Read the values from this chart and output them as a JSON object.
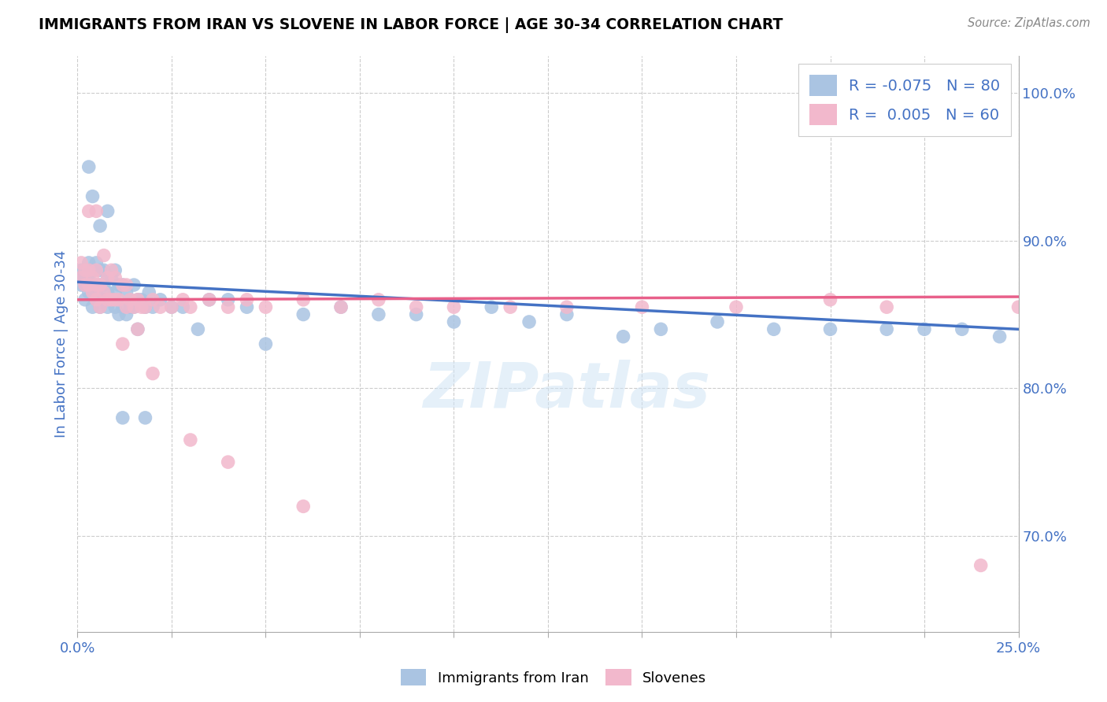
{
  "title": "IMMIGRANTS FROM IRAN VS SLOVENE IN LABOR FORCE | AGE 30-34 CORRELATION CHART",
  "source": "Source: ZipAtlas.com",
  "ylabel": "In Labor Force | Age 30-34",
  "ylabel_right_ticks": [
    "70.0%",
    "80.0%",
    "90.0%",
    "100.0%"
  ],
  "ylabel_right_vals": [
    0.7,
    0.8,
    0.9,
    1.0
  ],
  "xmin": 0.0,
  "xmax": 0.25,
  "ymin": 0.635,
  "ymax": 1.025,
  "iran_color": "#aac4e2",
  "slovene_color": "#f2b8cc",
  "iran_line_color": "#4472c4",
  "slovene_line_color": "#e8608a",
  "legend_iran_R": "-0.075",
  "legend_iran_N": "80",
  "legend_slovene_R": "0.005",
  "legend_slovene_N": "60",
  "watermark": "ZIPatlas",
  "iran_x": [
    0.001,
    0.001,
    0.001,
    0.002,
    0.002,
    0.002,
    0.002,
    0.003,
    0.003,
    0.003,
    0.003,
    0.003,
    0.004,
    0.004,
    0.004,
    0.004,
    0.005,
    0.005,
    0.005,
    0.005,
    0.006,
    0.006,
    0.006,
    0.007,
    0.007,
    0.007,
    0.008,
    0.008,
    0.008,
    0.009,
    0.009,
    0.01,
    0.01,
    0.01,
    0.011,
    0.011,
    0.012,
    0.012,
    0.013,
    0.013,
    0.014,
    0.015,
    0.015,
    0.016,
    0.016,
    0.017,
    0.018,
    0.019,
    0.02,
    0.022,
    0.025,
    0.028,
    0.032,
    0.035,
    0.04,
    0.045,
    0.05,
    0.06,
    0.07,
    0.08,
    0.09,
    0.1,
    0.11,
    0.12,
    0.13,
    0.145,
    0.155,
    0.17,
    0.185,
    0.2,
    0.215,
    0.225,
    0.235,
    0.245,
    0.003,
    0.004,
    0.006,
    0.008,
    0.012,
    0.018
  ],
  "iran_y": [
    0.87,
    0.875,
    0.88,
    0.86,
    0.87,
    0.875,
    0.88,
    0.865,
    0.87,
    0.875,
    0.88,
    0.885,
    0.855,
    0.865,
    0.87,
    0.88,
    0.86,
    0.865,
    0.87,
    0.885,
    0.855,
    0.87,
    0.88,
    0.86,
    0.87,
    0.88,
    0.855,
    0.865,
    0.875,
    0.86,
    0.875,
    0.855,
    0.865,
    0.88,
    0.85,
    0.87,
    0.855,
    0.87,
    0.85,
    0.865,
    0.855,
    0.855,
    0.87,
    0.84,
    0.86,
    0.86,
    0.855,
    0.865,
    0.855,
    0.86,
    0.855,
    0.855,
    0.84,
    0.86,
    0.86,
    0.855,
    0.83,
    0.85,
    0.855,
    0.85,
    0.85,
    0.845,
    0.855,
    0.845,
    0.85,
    0.835,
    0.84,
    0.845,
    0.84,
    0.84,
    0.84,
    0.84,
    0.84,
    0.835,
    0.95,
    0.93,
    0.91,
    0.92,
    0.78,
    0.78
  ],
  "slovene_x": [
    0.001,
    0.001,
    0.002,
    0.002,
    0.003,
    0.003,
    0.004,
    0.004,
    0.005,
    0.005,
    0.005,
    0.006,
    0.006,
    0.007,
    0.008,
    0.008,
    0.009,
    0.01,
    0.01,
    0.011,
    0.012,
    0.013,
    0.013,
    0.014,
    0.015,
    0.016,
    0.017,
    0.018,
    0.02,
    0.022,
    0.025,
    0.028,
    0.03,
    0.035,
    0.04,
    0.045,
    0.05,
    0.06,
    0.07,
    0.08,
    0.09,
    0.1,
    0.115,
    0.13,
    0.15,
    0.175,
    0.2,
    0.215,
    0.24,
    0.25,
    0.003,
    0.005,
    0.007,
    0.009,
    0.012,
    0.016,
    0.02,
    0.03,
    0.04,
    0.06
  ],
  "slovene_y": [
    0.875,
    0.885,
    0.87,
    0.88,
    0.87,
    0.88,
    0.865,
    0.875,
    0.86,
    0.87,
    0.88,
    0.855,
    0.87,
    0.865,
    0.86,
    0.875,
    0.86,
    0.86,
    0.875,
    0.86,
    0.87,
    0.855,
    0.87,
    0.86,
    0.855,
    0.86,
    0.855,
    0.855,
    0.86,
    0.855,
    0.855,
    0.86,
    0.855,
    0.86,
    0.855,
    0.86,
    0.855,
    0.86,
    0.855,
    0.86,
    0.855,
    0.855,
    0.855,
    0.855,
    0.855,
    0.855,
    0.86,
    0.855,
    0.68,
    0.855,
    0.92,
    0.92,
    0.89,
    0.88,
    0.83,
    0.84,
    0.81,
    0.765,
    0.75,
    0.72
  ],
  "iran_trend_x0": 0.0,
  "iran_trend_y0": 0.872,
  "iran_trend_x1": 0.25,
  "iran_trend_y1": 0.84,
  "slovene_trend_x0": 0.0,
  "slovene_trend_y0": 0.86,
  "slovene_trend_x1": 0.25,
  "slovene_trend_y1": 0.862
}
